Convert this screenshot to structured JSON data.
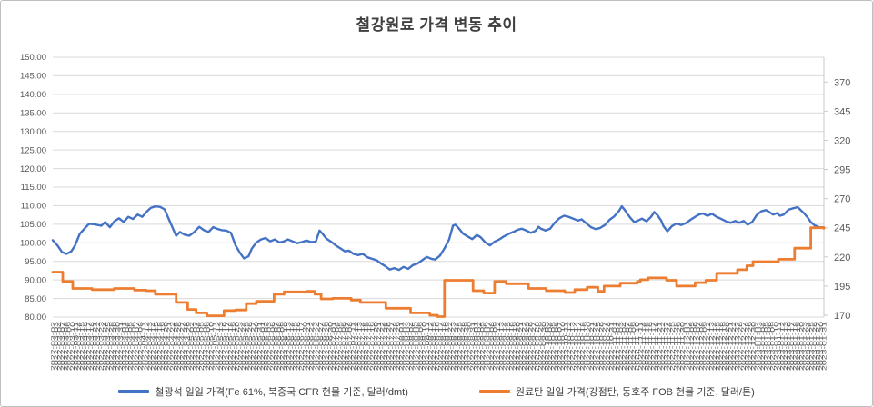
{
  "frame": {
    "background": "#ffffff",
    "border_color": "#bfbfbf"
  },
  "chart_data": {
    "type": "line",
    "title": "철강원료 가격 변동 추이",
    "title_color": "#404040",
    "grid": true,
    "gridline_color": "#d9d9d9",
    "axis_line_color": "#c9c9c9",
    "legend_position": "bottom",
    "x_axis": {
      "label_start": "2022-03-02",
      "label_end": "2023-01-31",
      "frequency": "weekdays",
      "label_format": "YYYY-MM-DD",
      "label_rotation_deg": -90,
      "label_color": "#595959"
    },
    "y_axis_left": {
      "min": 80,
      "max": 150,
      "step": 5,
      "tick_labels": [
        "150.00",
        "145.00",
        "140.00",
        "135.00",
        "130.00",
        "125.00",
        "120.00",
        "115.00",
        "110.00",
        "105.00",
        "100.00",
        "95.00",
        "90.00",
        "85.00",
        "80.00"
      ],
      "tick_values": [
        150,
        145,
        140,
        135,
        130,
        125,
        120,
        115,
        110,
        105,
        100,
        95,
        90,
        85,
        80
      ],
      "label_color": "#595959"
    },
    "y_axis_right": {
      "tick_labels": [
        "370",
        "345",
        "320",
        "295",
        "270",
        "245",
        "220",
        "195",
        "170"
      ],
      "tick_values": [
        370,
        345,
        320,
        295,
        270,
        245,
        220,
        195,
        170
      ],
      "label_color": "#595959"
    },
    "series": [
      {
        "name": "철광석 일일 가격(Fe 61%, 북중국 CFR 현물 기준, 달러/dmt)",
        "color": "#4472C4",
        "axis": "left",
        "interpolation": "linear",
        "stroke_width": 2.4,
        "points": [
          [
            0,
            100.7
          ],
          [
            0.006,
            99.3
          ],
          [
            0.012,
            97.5
          ],
          [
            0.018,
            97.0
          ],
          [
            0.024,
            97.7
          ],
          [
            0.029,
            99.3
          ],
          [
            0.035,
            102.4
          ],
          [
            0.041,
            103.8
          ],
          [
            0.047,
            105.1
          ],
          [
            0.054,
            105.0
          ],
          [
            0.063,
            104.6
          ],
          [
            0.068,
            105.6
          ],
          [
            0.074,
            104.2
          ],
          [
            0.08,
            105.8
          ],
          [
            0.086,
            106.6
          ],
          [
            0.092,
            105.6
          ],
          [
            0.098,
            107.0
          ],
          [
            0.104,
            106.4
          ],
          [
            0.11,
            107.6
          ],
          [
            0.116,
            107.0
          ],
          [
            0.121,
            108.2
          ],
          [
            0.127,
            109.4
          ],
          [
            0.133,
            109.8
          ],
          [
            0.139,
            109.7
          ],
          [
            0.145,
            109.0
          ],
          [
            0.151,
            106.2
          ],
          [
            0.157,
            103.3
          ],
          [
            0.16,
            101.9
          ],
          [
            0.165,
            102.9
          ],
          [
            0.171,
            102.2
          ],
          [
            0.177,
            101.9
          ],
          [
            0.183,
            102.8
          ],
          [
            0.19,
            104.3
          ],
          [
            0.196,
            103.4
          ],
          [
            0.202,
            102.9
          ],
          [
            0.208,
            104.2
          ],
          [
            0.213,
            103.8
          ],
          [
            0.219,
            103.4
          ],
          [
            0.225,
            103.3
          ],
          [
            0.231,
            102.7
          ],
          [
            0.237,
            99.3
          ],
          [
            0.243,
            97.2
          ],
          [
            0.248,
            95.8
          ],
          [
            0.254,
            96.4
          ],
          [
            0.258,
            98.4
          ],
          [
            0.264,
            100.1
          ],
          [
            0.27,
            100.9
          ],
          [
            0.276,
            101.3
          ],
          [
            0.282,
            100.4
          ],
          [
            0.288,
            100.9
          ],
          [
            0.294,
            100.1
          ],
          [
            0.3,
            100.4
          ],
          [
            0.305,
            100.9
          ],
          [
            0.311,
            100.4
          ],
          [
            0.317,
            99.9
          ],
          [
            0.323,
            100.2
          ],
          [
            0.329,
            100.6
          ],
          [
            0.335,
            100.2
          ],
          [
            0.341,
            100.3
          ],
          [
            0.346,
            103.3
          ],
          [
            0.35,
            102.4
          ],
          [
            0.355,
            101.1
          ],
          [
            0.361,
            100.3
          ],
          [
            0.367,
            99.3
          ],
          [
            0.373,
            98.5
          ],
          [
            0.379,
            97.7
          ],
          [
            0.384,
            97.9
          ],
          [
            0.39,
            97.0
          ],
          [
            0.396,
            96.7
          ],
          [
            0.402,
            97.0
          ],
          [
            0.408,
            96.1
          ],
          [
            0.414,
            95.7
          ],
          [
            0.42,
            95.3
          ],
          [
            0.426,
            94.4
          ],
          [
            0.432,
            93.6
          ],
          [
            0.437,
            92.8
          ],
          [
            0.443,
            93.2
          ],
          [
            0.449,
            92.7
          ],
          [
            0.455,
            93.5
          ],
          [
            0.461,
            93.0
          ],
          [
            0.467,
            94.0
          ],
          [
            0.473,
            94.4
          ],
          [
            0.479,
            95.3
          ],
          [
            0.485,
            96.2
          ],
          [
            0.491,
            95.7
          ],
          [
            0.496,
            95.5
          ],
          [
            0.502,
            96.5
          ],
          [
            0.508,
            98.5
          ],
          [
            0.514,
            100.9
          ],
          [
            0.519,
            104.6
          ],
          [
            0.522,
            104.9
          ],
          [
            0.527,
            103.8
          ],
          [
            0.532,
            102.5
          ],
          [
            0.538,
            101.7
          ],
          [
            0.544,
            101.0
          ],
          [
            0.55,
            102.1
          ],
          [
            0.555,
            101.5
          ],
          [
            0.561,
            100.1
          ],
          [
            0.567,
            99.3
          ],
          [
            0.573,
            100.3
          ],
          [
            0.579,
            100.9
          ],
          [
            0.585,
            101.7
          ],
          [
            0.591,
            102.4
          ],
          [
            0.597,
            102.9
          ],
          [
            0.603,
            103.5
          ],
          [
            0.608,
            103.8
          ],
          [
            0.614,
            103.3
          ],
          [
            0.62,
            102.7
          ],
          [
            0.626,
            103.2
          ],
          [
            0.63,
            104.3
          ],
          [
            0.633,
            103.8
          ],
          [
            0.639,
            103.3
          ],
          [
            0.645,
            103.8
          ],
          [
            0.651,
            105.4
          ],
          [
            0.657,
            106.6
          ],
          [
            0.663,
            107.3
          ],
          [
            0.669,
            107.0
          ],
          [
            0.675,
            106.5
          ],
          [
            0.681,
            106.0
          ],
          [
            0.686,
            106.3
          ],
          [
            0.692,
            105.2
          ],
          [
            0.698,
            104.2
          ],
          [
            0.704,
            103.7
          ],
          [
            0.71,
            104.0
          ],
          [
            0.716,
            104.8
          ],
          [
            0.722,
            106.2
          ],
          [
            0.728,
            107.1
          ],
          [
            0.734,
            108.5
          ],
          [
            0.738,
            109.8
          ],
          [
            0.742,
            108.8
          ],
          [
            0.745,
            107.8
          ],
          [
            0.75,
            106.5
          ],
          [
            0.754,
            105.6
          ],
          [
            0.758,
            105.9
          ],
          [
            0.764,
            106.5
          ],
          [
            0.77,
            105.8
          ],
          [
            0.776,
            107.0
          ],
          [
            0.78,
            108.3
          ],
          [
            0.784,
            107.5
          ],
          [
            0.789,
            106.0
          ],
          [
            0.792,
            104.5
          ],
          [
            0.797,
            103.1
          ],
          [
            0.803,
            104.5
          ],
          [
            0.809,
            105.2
          ],
          [
            0.815,
            104.8
          ],
          [
            0.821,
            105.3
          ],
          [
            0.827,
            106.2
          ],
          [
            0.833,
            107.0
          ],
          [
            0.838,
            107.6
          ],
          [
            0.843,
            107.9
          ],
          [
            0.849,
            107.3
          ],
          [
            0.855,
            107.8
          ],
          [
            0.861,
            107.0
          ],
          [
            0.867,
            106.4
          ],
          [
            0.873,
            105.8
          ],
          [
            0.879,
            105.4
          ],
          [
            0.885,
            105.9
          ],
          [
            0.89,
            105.4
          ],
          [
            0.896,
            105.9
          ],
          [
            0.901,
            104.9
          ],
          [
            0.907,
            105.6
          ],
          [
            0.913,
            107.5
          ],
          [
            0.919,
            108.5
          ],
          [
            0.925,
            108.8
          ],
          [
            0.93,
            108.2
          ],
          [
            0.934,
            107.6
          ],
          [
            0.939,
            108.0
          ],
          [
            0.943,
            107.3
          ],
          [
            0.948,
            107.6
          ],
          [
            0.954,
            108.9
          ],
          [
            0.96,
            109.3
          ],
          [
            0.966,
            109.6
          ],
          [
            0.969,
            109.0
          ],
          [
            0.974,
            108.0
          ],
          [
            0.979,
            106.8
          ],
          [
            0.983,
            105.6
          ],
          [
            0.988,
            104.7
          ],
          [
            0.994,
            104.2
          ],
          [
            1,
            104.1
          ]
        ]
      },
      {
        "name": "원료탄 일일 가격(강점탄, 동호주 FOB 현물 기준, 달러/톤)",
        "color": "#ED7D31",
        "axis": "right",
        "interpolation": "step",
        "stroke_width": 2.8,
        "points": [
          [
            0,
            207
          ],
          [
            0.013,
            199
          ],
          [
            0.026,
            193
          ],
          [
            0.051,
            192
          ],
          [
            0.08,
            193
          ],
          [
            0.106,
            191.5
          ],
          [
            0.121,
            191
          ],
          [
            0.133,
            188
          ],
          [
            0.16,
            181
          ],
          [
            0.175,
            175
          ],
          [
            0.186,
            172
          ],
          [
            0.2,
            169.5
          ],
          [
            0.222,
            174
          ],
          [
            0.237,
            174.5
          ],
          [
            0.251,
            180
          ],
          [
            0.264,
            182
          ],
          [
            0.287,
            188
          ],
          [
            0.3,
            190
          ],
          [
            0.33,
            190.5
          ],
          [
            0.34,
            188
          ],
          [
            0.348,
            184
          ],
          [
            0.363,
            184.5
          ],
          [
            0.387,
            183
          ],
          [
            0.399,
            181
          ],
          [
            0.432,
            176
          ],
          [
            0.464,
            172
          ],
          [
            0.489,
            170
          ],
          [
            0.499,
            168.8
          ],
          [
            0.508,
            200
          ],
          [
            0.545,
            191
          ],
          [
            0.559,
            189
          ],
          [
            0.573,
            199
          ],
          [
            0.588,
            197
          ],
          [
            0.617,
            193
          ],
          [
            0.64,
            191
          ],
          [
            0.664,
            189.5
          ],
          [
            0.677,
            192
          ],
          [
            0.693,
            194
          ],
          [
            0.707,
            190.5
          ],
          [
            0.715,
            195
          ],
          [
            0.736,
            197.5
          ],
          [
            0.758,
            199
          ],
          [
            0.762,
            200.5
          ],
          [
            0.772,
            202
          ],
          [
            0.796,
            200
          ],
          [
            0.809,
            195
          ],
          [
            0.833,
            198
          ],
          [
            0.847,
            200
          ],
          [
            0.861,
            206
          ],
          [
            0.888,
            209
          ],
          [
            0.9,
            212.5
          ],
          [
            0.908,
            216
          ],
          [
            0.941,
            218
          ],
          [
            0.962,
            227.5
          ],
          [
            0.983,
            245
          ],
          [
            1,
            244.5
          ]
        ]
      }
    ]
  }
}
